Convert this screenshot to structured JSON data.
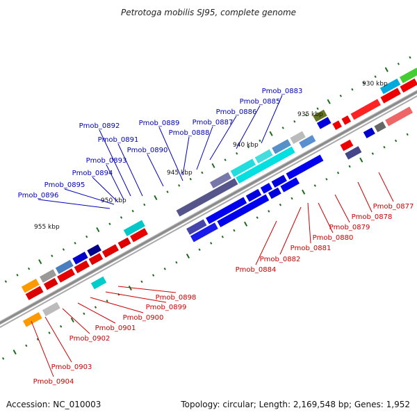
{
  "title": "Petrotoga mobilis SJ95, complete genome",
  "accession": "Accession: NC_010003",
  "topology": "Topology: circular; Length: 2,169,548 bp; Genes: 1,952",
  "colors": {
    "top_label": "#0000bb",
    "bottom_label": "#cc0000",
    "backbone": "#8c8c8c",
    "tick_major": "#1a6b1a",
    "tick_minor": "#1a6b1a"
  },
  "scale_labels": [
    "930 kbp",
    "935 kbp",
    "940 kbp",
    "945 kbp",
    "950 kbp",
    "955 kbp"
  ],
  "top_genes": [
    "Pmob_0883",
    "Pmob_0885",
    "Pmob_0886",
    "Pmob_0887",
    "Pmob_0888",
    "Pmob_0889",
    "Pmob_0890",
    "Pmob_0891",
    "Pmob_0892",
    "Pmob_0893",
    "Pmob_0894",
    "Pmob_0895",
    "Pmob_0896"
  ],
  "bottom_genes": [
    "Pmob_0877",
    "Pmob_0878",
    "Pmob_0879",
    "Pmob_0880",
    "Pmob_0881",
    "Pmob_0882",
    "Pmob_0884",
    "Pmob_0898",
    "Pmob_0899",
    "Pmob_0900",
    "Pmob_0901",
    "Pmob_0902",
    "Pmob_0903",
    "Pmob_0904"
  ]
}
